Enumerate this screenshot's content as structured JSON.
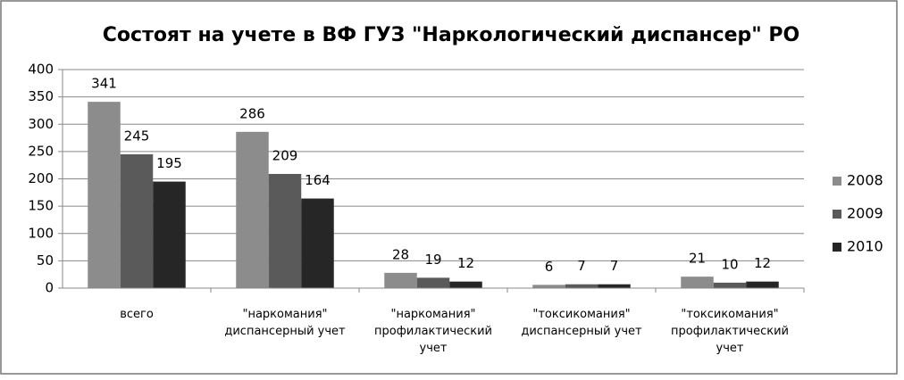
{
  "chart_data": {
    "type": "bar",
    "title": "Состоят на учете в ВФ ГУЗ \"Наркологический диспансер\" РО",
    "categories": [
      "всего",
      "\"наркомания\" диспансерный учет",
      "\"наркомания\" профилактический учет",
      "\"токсикомания\" диспансерный учет",
      "\"токсикомания\" профилактический учет"
    ],
    "series": [
      {
        "name": "2008",
        "color": "#8c8c8c",
        "values": [
          341,
          286,
          28,
          6,
          21
        ]
      },
      {
        "name": "2009",
        "color": "#5a5a5a",
        "values": [
          245,
          209,
          19,
          7,
          10
        ]
      },
      {
        "name": "2010",
        "color": "#262626",
        "values": [
          195,
          164,
          12,
          7,
          12
        ]
      }
    ],
    "ylim": [
      0,
      400
    ],
    "yticks": [
      0,
      50,
      100,
      150,
      200,
      250,
      300,
      350,
      400
    ],
    "grid": true,
    "legend": "right"
  }
}
